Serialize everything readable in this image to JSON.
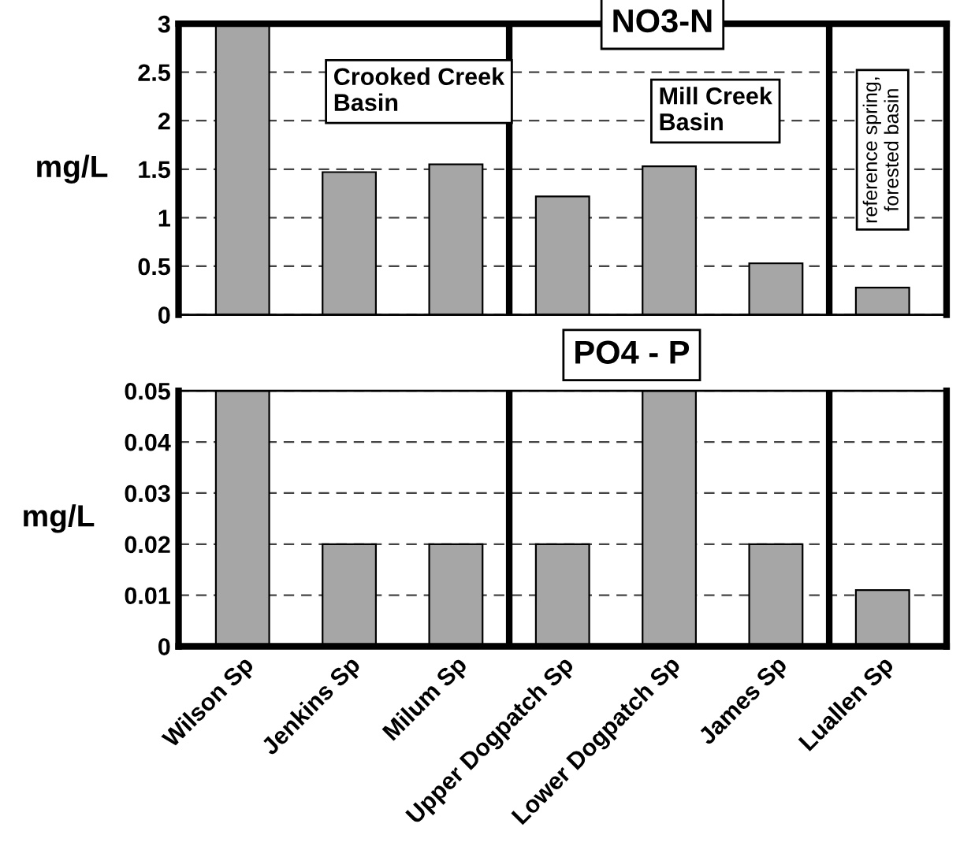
{
  "chart_data": [
    {
      "type": "bar",
      "title": "NO3-N",
      "ylabel": "mg/L",
      "tick_labels": "y",
      "categories": [
        null,
        null,
        null,
        null,
        null,
        null,
        null
      ],
      "values": [
        3.0,
        1.47,
        1.55,
        1.22,
        1.53,
        0.53,
        0.28
      ],
      "color": "#a6a6a6",
      "ylim": [
        0,
        3
      ],
      "yticks": [
        0,
        0.5,
        1,
        1.5,
        2,
        2.5,
        3
      ],
      "grid": "y",
      "annotations": [
        "Crooked Creek\nBasin",
        "Mill Creek\nBasin",
        "reference spring,\nforested basin"
      ]
    },
    {
      "type": "bar",
      "title": "PO4 - P",
      "ylabel": "mg/L",
      "categories": [
        "Wilson Sp",
        "Jenkins Sp",
        "Milum Sp",
        "Upper Dogpatch Sp",
        "Lower Dogpatch Sp",
        "James Sp",
        "Luallen Sp"
      ],
      "values": [
        0.05,
        0.02,
        0.02,
        0.02,
        0.05,
        0.02,
        0.011
      ],
      "color": "#a6a6a6",
      "ylim": [
        0,
        0.05
      ],
      "yticks": [
        0,
        0.01,
        0.02,
        0.03,
        0.04,
        0.05
      ],
      "grid": "y"
    }
  ]
}
